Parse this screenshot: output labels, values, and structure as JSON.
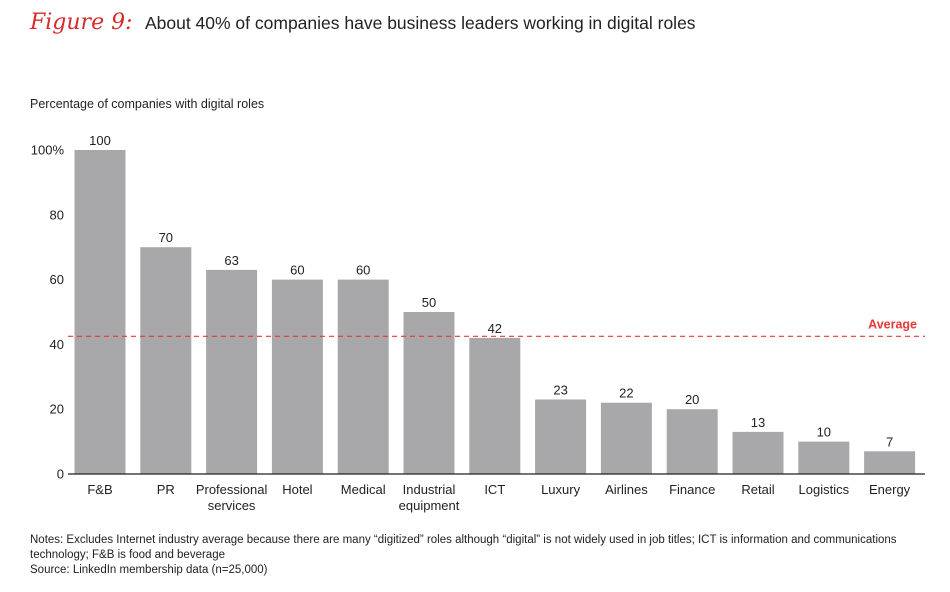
{
  "figure": {
    "label": "Figure 9:",
    "title": "About 40% of companies have business leaders working in digital roles"
  },
  "notes": {
    "line1": "Notes: Excludes Internet industry average because there are many “digitized” roles although “digital” is not widely used in job titles; ICT is information and communications technology; F&B is food and beverage",
    "source": "Source: LinkedIn membership data (n=25,000)"
  },
  "colors": {
    "bar": "#a8a8ab",
    "average": "#e23a35",
    "axis": "#222222",
    "title_accent": "#d62b2b"
  },
  "chart_data": {
    "type": "bar",
    "title": "About 40% of companies have business leaders working in digital roles",
    "ylabel": "Percentage of companies with digital roles",
    "xlabel": "",
    "ylim": [
      0,
      100
    ],
    "yticks": [
      "0",
      "20",
      "40",
      "60",
      "80",
      "100%"
    ],
    "ytick_values": [
      0,
      20,
      40,
      60,
      80,
      100
    ],
    "categories": [
      [
        "F&B"
      ],
      [
        "PR"
      ],
      [
        "Professional",
        "services"
      ],
      [
        "Hotel"
      ],
      [
        "Medical"
      ],
      [
        "Industrial",
        "equipment"
      ],
      [
        "ICT"
      ],
      [
        "Luxury"
      ],
      [
        "Airlines"
      ],
      [
        "Finance"
      ],
      [
        "Retail"
      ],
      [
        "Logistics"
      ],
      [
        "Energy"
      ]
    ],
    "values": [
      100,
      70,
      63,
      60,
      60,
      50,
      42,
      23,
      22,
      20,
      13,
      10,
      7
    ],
    "data_labels": [
      "100",
      "70",
      "63",
      "60",
      "60",
      "50",
      "42",
      "23",
      "22",
      "20",
      "13",
      "10",
      "7"
    ],
    "average": {
      "label": "Average",
      "value": 42.5
    },
    "grid": false
  }
}
